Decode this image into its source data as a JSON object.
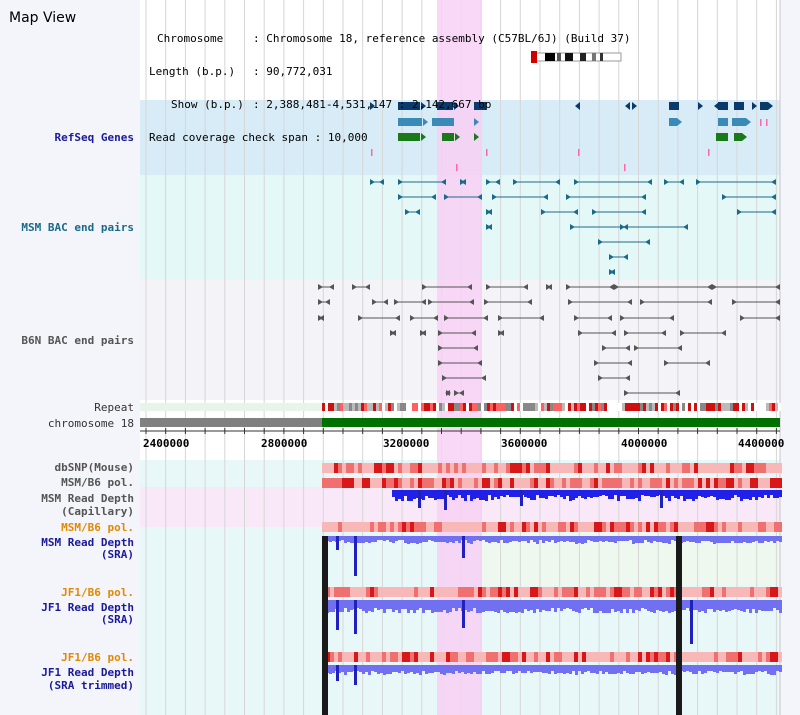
{
  "title": "Map View",
  "info": {
    "chromosome_key": "Chromosome",
    "chromosome_val": "Chromosome 18, reference assembly (C57BL/6J) (Build 37)",
    "length_key": "Length (b.p.)",
    "length_val": "90,772,031",
    "show_key": "Show (b.p.)",
    "show_val": "2,388,481-4,531,147 : 2,142,667 bp",
    "coverage_key": "Read coverage check span",
    "coverage_val": "10,000"
  },
  "tracks": {
    "refseq": "RefSeq Genes",
    "msm_bac": "MSM BAC end pairs",
    "b6n_bac": "B6N BAC end pairs",
    "repeat": "Repeat",
    "chromosome": "chromosome 18",
    "dbsnp": "dbSNP(Mouse)",
    "msm_b6_pol1": "MSM/B6 pol.",
    "msm_depth_cap_1": "MSM Read Depth",
    "msm_depth_cap_2": "(Capillary)",
    "msm_b6_pol2": "MSM/B6 pol.",
    "msm_depth_sra_1": "MSM Read Depth",
    "msm_depth_sra_2": "(SRA)",
    "jf1_b6_pol1": "JF1/B6 pol.",
    "jf1_depth_sra_1": "JF1 Read Depth",
    "jf1_depth_sra_2": "(SRA)",
    "jf1_b6_pol2": "JF1/B6 pol.",
    "jf1_depth_trim_1": "JF1 Read Depth",
    "jf1_depth_trim_2": "(SRA trimmed)"
  },
  "axis_ticks": [
    "2400000",
    "2800000",
    "3200000",
    "3600000",
    "4000000",
    "4400000"
  ],
  "colors": {
    "refseq_bg": "#d8ecf8",
    "msm_bg": "#e4f8f8",
    "b6n_bg": "#f4f4f8",
    "highlight": "#f8d0f4",
    "chromosome_bar": "#007000",
    "depth_fill": "#7070f0"
  }
}
